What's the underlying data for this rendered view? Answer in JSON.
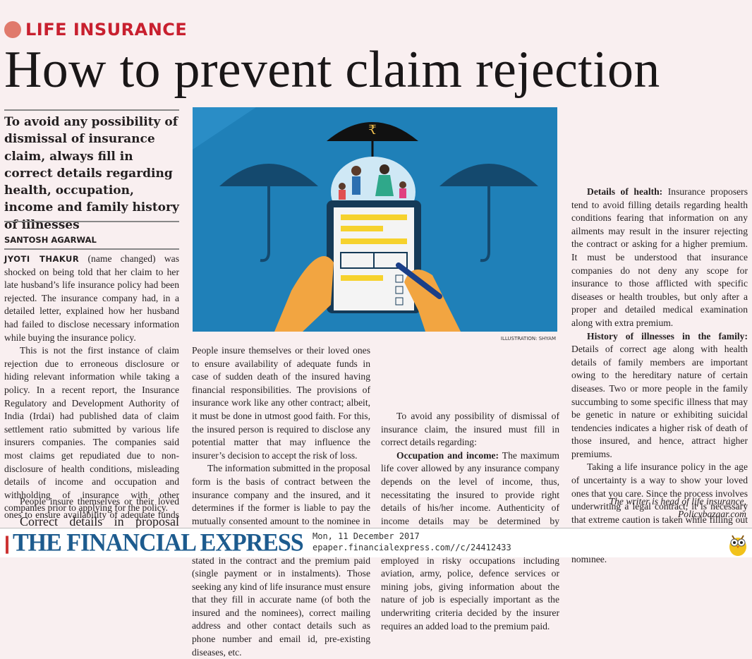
{
  "article": {
    "kicker": "LIFE INSURANCE",
    "headline": "How to prevent claim rejection",
    "deck": "To avoid any possibility of dismissal of insurance claim, always fill in correct details regarding health, occupation, income and family history of illnesses",
    "byline": "SANTOSH AGARWAL",
    "lead_name": "JYOTI THAKUR",
    "p1": " (name changed) was shocked on being told that her claim to her late husband’s life insurance policy had been rejected. The insurance company had, in a detailed letter, explained how her husband had failed to disclose necessary information while buying the insurance policy.",
    "p2": "This is not the first instance of claim rejection due to erroneous disclosure or hiding relevant information while taking a policy. In a recent report, the Insurance Regulatory and Development Authority of India (Irdai) had published data of claim settlement ratio submitted by various life insurers companies. The companies said most claims get repudiated due to non-disclosure of health conditions, misleading details of income and occupation and withholding of insurance with other companies prior to applying for the policy.",
    "subhead": "Correct details in proposal form",
    "p3": "People insure themselves or their loved ones to ensure availability of adequate funds in case of sudden death of the insured having financial responsibilities. The provisions of insurance work like any other contract; albeit, it must be done in utmost good faith. For this, the insured person is required to disclose any potential matter that may influence the insurer’s decision to accept the risk of loss.",
    "p4": "The information submitted in the proposal form is the basis of contract between the insurance company and the insured, and it determines if the former is liable to pay the mutually consented amount to the nominee in case of death of the life insured. The amount of payment varies according to the terms stated in the contract and the premium paid (single payment or in instalments). Those seeking any kind of life insurance must ensure that they fill in accurate name (of both the insured and the nominees), correct mailing address and other contact details such as phone number and email id, pre-existing diseases, etc.",
    "p5": "To avoid any possibility of dismissal of insurance claim, the insured must fill in correct details regarding:",
    "occ_label": "Occupation and income:",
    "occ_text": " The maximum life cover allowed by any insurance company depends on the level of income, thus, necessitating the insured to provide right details of his/her income. Authenticity of income details may be determined by submission of last pay slip along with the Income Tax Return (ITR) filed. For those employed in risky occupations including aviation, army, police, defence services or mining jobs, giving information about the nature of job is especially important as the underwriting criteria decided by the insurer requires an added load to the premium paid.",
    "health_label": "Details of health:",
    "health_text": " Insurance proposers tend to avoid filling details regarding health conditions fearing that information on any ailments may result in the insurer rejecting the contract or asking for a higher premium. It must be understood that insurance companies do not deny any scope for insurance to those afflicted with specific diseases or health troubles, but only after a proper and detailed medical examination along with extra premium.",
    "history_label": "History of illnesses in the family:",
    "history_text": " Details of correct age along with health details of family members are important owing to the hereditary nature of certain diseases. Two or more people in the family succumbing to some specific illness that may be genetic in nature or exhibiting suicidal tendencies indicates a higher risk of death of those insured, and hence, attract higher premiums.",
    "p6": "Taking a life insurance policy in the age of uncertainty is a way to show your loved ones that you care. Since the process involves underwriting a legal contract, it is necessary that extreme caution is taken while filling out the form. This will ensure timely and complete payment of the claim to the nominee.",
    "sig1": "The writer is head of life insurance,",
    "sig2": "Policybazaar.com",
    "illustration_credit": "ILLUSTRATION: SHYAM",
    "rupee_symbol": "₹"
  },
  "footer": {
    "masthead": "THE FINANCIAL EXPRESS",
    "date": "Mon, 11 December 2017",
    "url": "epaper.financialexpress.com//c/24412433"
  },
  "colors": {
    "kicker": "#c8202f",
    "illustration_bg": "#1f80b8",
    "masthead": "#1d5b8e",
    "background": "#f9eff0"
  }
}
